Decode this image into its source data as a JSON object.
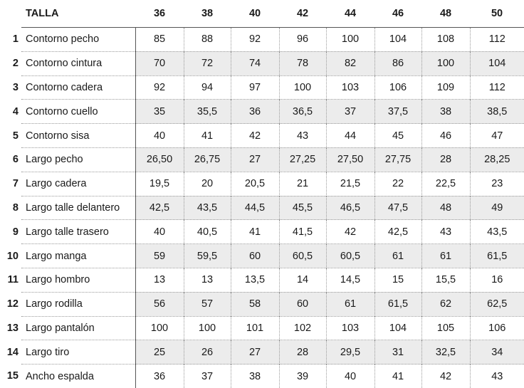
{
  "header": {
    "label": "TALLA",
    "sizes": [
      "36",
      "38",
      "40",
      "42",
      "44",
      "46",
      "48",
      "50"
    ]
  },
  "rows": [
    {
      "num": "1",
      "name": "Contorno pecho",
      "values": [
        "85",
        "88",
        "92",
        "96",
        "100",
        "104",
        "108",
        "112"
      ]
    },
    {
      "num": "2",
      "name": "Contorno cintura",
      "values": [
        "70",
        "72",
        "74",
        "78",
        "82",
        "86",
        "100",
        "104"
      ]
    },
    {
      "num": "3",
      "name": "Contorno cadera",
      "values": [
        "92",
        "94",
        "97",
        "100",
        "103",
        "106",
        "109",
        "112"
      ]
    },
    {
      "num": "4",
      "name": "Contorno cuello",
      "values": [
        "35",
        "35,5",
        "36",
        "36,5",
        "37",
        "37,5",
        "38",
        "38,5"
      ]
    },
    {
      "num": "5",
      "name": "Contorno sisa",
      "values": [
        "40",
        "41",
        "42",
        "43",
        "44",
        "45",
        "46",
        "47"
      ]
    },
    {
      "num": "6",
      "name": "Largo pecho",
      "values": [
        "26,50",
        "26,75",
        "27",
        "27,25",
        "27,50",
        "27,75",
        "28",
        "28,25"
      ]
    },
    {
      "num": "7",
      "name": "Largo cadera",
      "values": [
        "19,5",
        "20",
        "20,5",
        "21",
        "21,5",
        "22",
        "22,5",
        "23"
      ]
    },
    {
      "num": "8",
      "name": "Largo talle delantero",
      "values": [
        "42,5",
        "43,5",
        "44,5",
        "45,5",
        "46,5",
        "47,5",
        "48",
        "49"
      ]
    },
    {
      "num": "9",
      "name": "Largo talle trasero",
      "values": [
        "40",
        "40,5",
        "41",
        "41,5",
        "42",
        "42,5",
        "43",
        "43,5"
      ]
    },
    {
      "num": "10",
      "name": "Largo manga",
      "values": [
        "59",
        "59,5",
        "60",
        "60,5",
        "60,5",
        "61",
        "61",
        "61,5"
      ]
    },
    {
      "num": "11",
      "name": "Largo hombro",
      "values": [
        "13",
        "13",
        "13,5",
        "14",
        "14,5",
        "15",
        "15,5",
        "16"
      ]
    },
    {
      "num": "12",
      "name": "Largo rodilla",
      "values": [
        "56",
        "57",
        "58",
        "60",
        "61",
        "61,5",
        "62",
        "62,5"
      ]
    },
    {
      "num": "13",
      "name": "Largo pantalón",
      "values": [
        "100",
        "100",
        "101",
        "102",
        "103",
        "104",
        "105",
        "106"
      ]
    },
    {
      "num": "14",
      "name": "Largo tiro",
      "values": [
        "25",
        "26",
        "27",
        "28",
        "29,5",
        "31",
        "32,5",
        "34"
      ]
    },
    {
      "num": "15",
      "name": "Ancho espalda",
      "values": [
        "36",
        "37",
        "38",
        "39",
        "40",
        "41",
        "42",
        "43"
      ]
    }
  ]
}
